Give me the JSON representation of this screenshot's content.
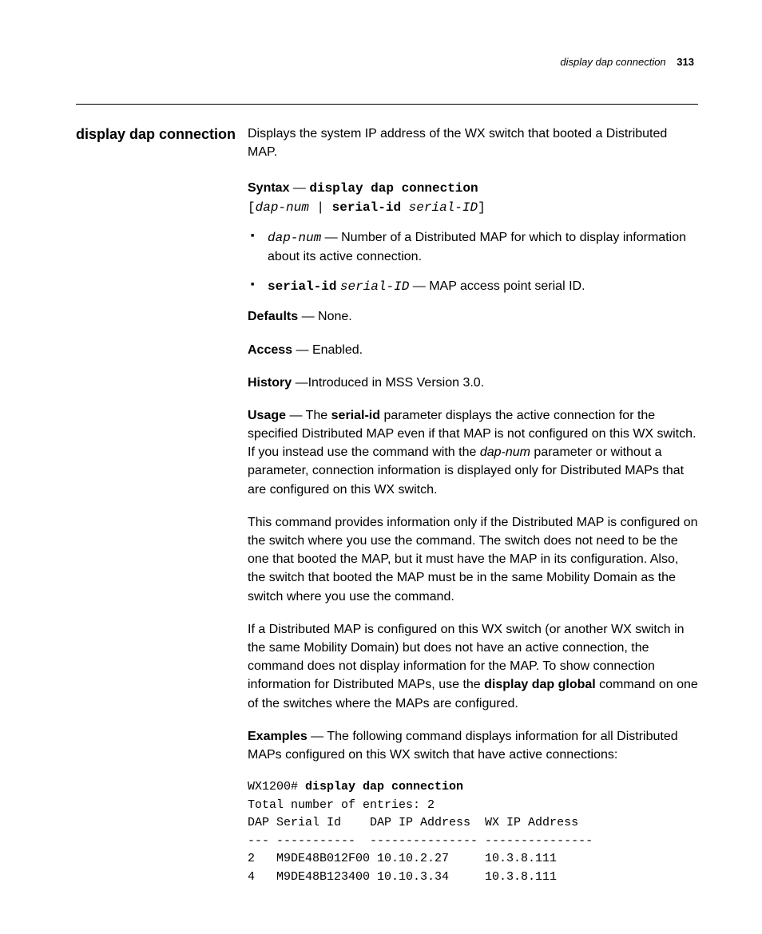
{
  "runningHead": {
    "title": "display dap connection",
    "page": "313"
  },
  "sideHeading": "display dap\nconnection",
  "intro": "Displays the system IP address of the WX switch that booted a Distributed MAP.",
  "syntax": {
    "label": "Syntax",
    "sep": " — ",
    "cmd": "display dap connection",
    "line2_open": "[",
    "line2_dapnum": "dap-num",
    "line2_pipe": " | ",
    "line2_serialid": "serial-id",
    "line2_space": " ",
    "line2_serialID": "serial-ID",
    "line2_close": "]"
  },
  "bullets": {
    "b1_code": "dap-num",
    "b1_rest": " — Number of a Distributed MAP for which to display information about its active connection.",
    "b2_code": "serial-id",
    "b2_space": " ",
    "b2_arg": "serial-ID",
    "b2_rest": " — MAP access point serial ID."
  },
  "defaults": {
    "label": "Defaults",
    "text": " — None."
  },
  "access": {
    "label": "Access",
    "text": " — Enabled."
  },
  "history": {
    "label": "History",
    "text": " —Introduced in MSS Version 3.0."
  },
  "usage": {
    "label": "Usage",
    "lead": " — The ",
    "serialid": "serial-id",
    "mid1": " parameter displays the active connection for the specified Distributed MAP even if that MAP is not configured on this WX switch. If you instead use the command with the ",
    "dapnum": "dap-num",
    "tail": " parameter or without a parameter, connection information is displayed only for Distributed MAPs that are configured on this WX switch."
  },
  "para2": "This command provides information only if the Distributed MAP is configured on the switch where you use the command. The switch does not need to be the one that booted the MAP, but it must have the MAP in its configuration. Also, the switch that booted the MAP must be in the same Mobility Domain as the switch where you use the command.",
  "para3": {
    "pre": "If a Distributed MAP is configured on this WX switch (or another WX switch in the same Mobility Domain) but does not have an active connection, the command does not display information for the MAP. To show connection information for Distributed MAPs, use the ",
    "cmd": "display dap global",
    "post": " command on one of the switches where the MAPs are configured."
  },
  "examples": {
    "label": "Examples",
    "text": " — The following command displays information for all Distributed MAPs configured on this WX switch that have active connections:"
  },
  "cli": {
    "prompt": "WX1200# ",
    "cmd": "display dap connection",
    "out": "Total number of entries: 2\nDAP Serial Id    DAP IP Address  WX IP Address\n--- -----------  --------------- ---------------\n2   M9DE48B012F00 10.10.2.27     10.3.8.111\n4   M9DE48B123400 10.10.3.34     10.3.8.111"
  }
}
